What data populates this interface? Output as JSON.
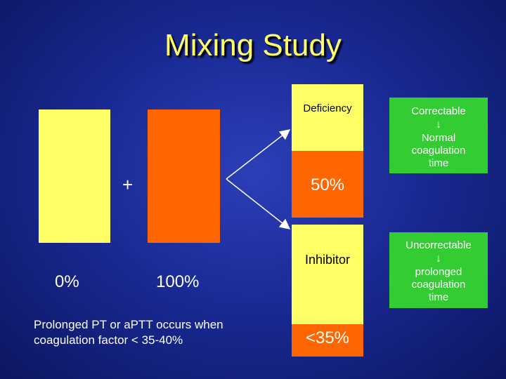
{
  "title": "Mixing Study",
  "left": {
    "bar1_label": "0%",
    "plus": "+",
    "bar2_label": "100%",
    "note": "Prolonged PT or aPTT occurs when coagulation factor < 35-40%"
  },
  "result_top": {
    "label": "Deficiency",
    "level": "50%"
  },
  "result_bottom": {
    "label": "Inhibitor",
    "level": "<35%"
  },
  "correctable": {
    "title": "Correctable",
    "outcome": "Normal coagulation time"
  },
  "uncorrectable": {
    "title": "Uncorrectable",
    "outcome": "prolonged coagulation time"
  },
  "colors": {
    "background": "#1a2a95",
    "title": "#ffff66",
    "normal_plasma": "#ffff66",
    "patient_plasma": "#ff6600",
    "outcome_box": "#33cc33"
  }
}
